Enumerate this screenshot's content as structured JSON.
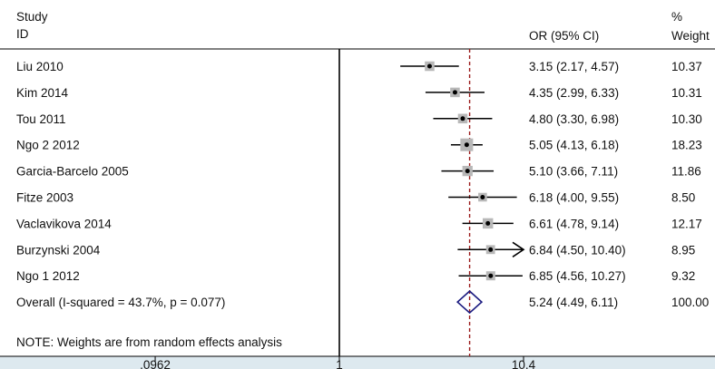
{
  "chart_data": {
    "type": "forest",
    "header": {
      "study_line1": "Study",
      "study_line2": "ID",
      "or_label": "OR (95% CI)",
      "weight_line1": "%",
      "weight_line2": "Weight"
    },
    "studies": [
      {
        "label": "Liu 2010",
        "or": 3.15,
        "lo": 2.17,
        "hi": 4.57,
        "or_text": "3.15 (2.17, 4.57)",
        "weight": 10.37,
        "weight_text": "10.37"
      },
      {
        "label": "Kim 2014",
        "or": 4.35,
        "lo": 2.99,
        "hi": 6.33,
        "or_text": "4.35 (2.99, 6.33)",
        "weight": 10.31,
        "weight_text": "10.31"
      },
      {
        "label": "Tou 2011",
        "or": 4.8,
        "lo": 3.3,
        "hi": 6.98,
        "or_text": "4.80 (3.30, 6.98)",
        "weight": 10.3,
        "weight_text": "10.30"
      },
      {
        "label": "Ngo 2 2012",
        "or": 5.05,
        "lo": 4.13,
        "hi": 6.18,
        "or_text": "5.05 (4.13, 6.18)",
        "weight": 18.23,
        "weight_text": "18.23"
      },
      {
        "label": "Garcia-Barcelo 2005",
        "or": 5.1,
        "lo": 3.66,
        "hi": 7.11,
        "or_text": "5.10 (3.66, 7.11)",
        "weight": 11.86,
        "weight_text": "11.86"
      },
      {
        "label": "Fitze 2003",
        "or": 6.18,
        "lo": 4.0,
        "hi": 9.55,
        "or_text": "6.18 (4.00, 9.55)",
        "weight": 8.5,
        "weight_text": "8.50"
      },
      {
        "label": "Vaclavikova 2014",
        "or": 6.61,
        "lo": 4.78,
        "hi": 9.14,
        "or_text": "6.61 (4.78, 9.14)",
        "weight": 12.17,
        "weight_text": "12.17"
      },
      {
        "label": "Burzynski 2004",
        "or": 6.84,
        "lo": 4.5,
        "hi": 10.4,
        "or_text": "6.84 (4.50, 10.40)",
        "weight": 8.95,
        "weight_text": "8.95",
        "arrow_right": true
      },
      {
        "label": "Ngo 1 2012",
        "or": 6.85,
        "lo": 4.56,
        "hi": 10.27,
        "or_text": "6.85 (4.56, 10.27)",
        "weight": 9.32,
        "weight_text": "9.32"
      }
    ],
    "overall": {
      "label": "Overall  (I-squared = 43.7%, p = 0.077)",
      "or": 5.24,
      "lo": 4.49,
      "hi": 6.11,
      "or_text": "5.24 (4.49, 6.11)",
      "weight_text": "100.00"
    },
    "note": "NOTE: Weights are from random effects analysis",
    "x_scale": "log",
    "xlim": [
      0.0962,
      10.4
    ],
    "x_ticks": [
      {
        "value": 0.0962,
        "label": ".0962"
      },
      {
        "value": 1,
        "label": "1"
      },
      {
        "value": 10.4,
        "label": "10.4"
      }
    ],
    "null_line": 1,
    "colors": {
      "text": "#111111",
      "ci_line": "#000000",
      "box": "#b8b8b8",
      "point": "#000000",
      "overall_line": "#9b1b1b",
      "diamond": "#1a1a80",
      "axis_band": "#dde9ef"
    }
  }
}
